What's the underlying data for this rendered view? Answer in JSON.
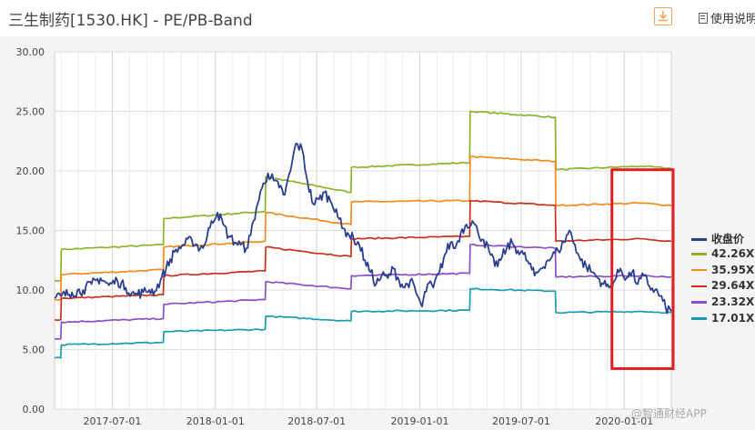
{
  "header": {
    "title": "三生制药[1530.HK] - PE/PB-Band",
    "download_icon": "download-icon",
    "help_label": "使用说明",
    "help_icon": "document-icon"
  },
  "watermark": "@智通财经APP",
  "chart_data": {
    "type": "line",
    "ylim": [
      0,
      30
    ],
    "yticks": [
      "0.00",
      "5.00",
      "10.00",
      "15.00",
      "20.00",
      "25.00",
      "30.00"
    ],
    "xticks": [
      "2017-07-01",
      "2018-01-01",
      "2018-07-01",
      "2019-01-01",
      "2019-07-01",
      "2020-01-01"
    ],
    "xrange": [
      "2017-03-20",
      "2020-03-25"
    ],
    "grid": true,
    "legend_position": "right",
    "highlight_box": {
      "from": "2019-12-10",
      "to": "2020-03-25",
      "y_from": 3.4,
      "y_to": 20.1,
      "color": "#e02020"
    },
    "series": [
      {
        "name": "收盘价",
        "color": "#2b3f8f",
        "points": [
          [
            "2017-03-20",
            9.3
          ],
          [
            "2017-04-01",
            9.5
          ],
          [
            "2017-04-20",
            9.8
          ],
          [
            "2017-05-10",
            10.0
          ],
          [
            "2017-05-25",
            10.5
          ],
          [
            "2017-06-10",
            11.0
          ],
          [
            "2017-06-25",
            10.4
          ],
          [
            "2017-07-10",
            10.8
          ],
          [
            "2017-07-25",
            10.2
          ],
          [
            "2017-08-10",
            9.6
          ],
          [
            "2017-08-25",
            9.8
          ],
          [
            "2017-09-05",
            10.0
          ],
          [
            "2017-09-15",
            9.9
          ],
          [
            "2017-09-25",
            10.8
          ],
          [
            "2017-10-05",
            11.8
          ],
          [
            "2017-10-20",
            13.2
          ],
          [
            "2017-11-05",
            13.8
          ],
          [
            "2017-11-20",
            14.2
          ],
          [
            "2017-12-05",
            13.5
          ],
          [
            "2017-12-15",
            14.0
          ],
          [
            "2017-12-25",
            15.8
          ],
          [
            "2018-01-05",
            16.5
          ],
          [
            "2018-01-15",
            15.5
          ],
          [
            "2018-01-25",
            14.5
          ],
          [
            "2018-02-05",
            14.0
          ],
          [
            "2018-02-15",
            13.8
          ],
          [
            "2018-02-25",
            13.5
          ],
          [
            "2018-03-05",
            14.6
          ],
          [
            "2018-03-15",
            16.8
          ],
          [
            "2018-03-25",
            18.5
          ],
          [
            "2018-04-05",
            19.8
          ],
          [
            "2018-04-15",
            19.2
          ],
          [
            "2018-04-25",
            18.6
          ],
          [
            "2018-05-05",
            18.0
          ],
          [
            "2018-05-15",
            20.0
          ],
          [
            "2018-05-25",
            22.3
          ],
          [
            "2018-06-05",
            21.8
          ],
          [
            "2018-06-15",
            19.0
          ],
          [
            "2018-06-25",
            17.2
          ],
          [
            "2018-07-05",
            17.6
          ],
          [
            "2018-07-15",
            18.2
          ],
          [
            "2018-07-25",
            17.5
          ],
          [
            "2018-08-05",
            16.8
          ],
          [
            "2018-08-15",
            15.2
          ],
          [
            "2018-08-25",
            14.8
          ],
          [
            "2018-09-05",
            14.3
          ],
          [
            "2018-09-15",
            13.8
          ],
          [
            "2018-09-25",
            12.5
          ],
          [
            "2018-10-05",
            11.5
          ],
          [
            "2018-10-15",
            10.5
          ],
          [
            "2018-10-25",
            11.2
          ],
          [
            "2018-11-05",
            11.0
          ],
          [
            "2018-11-15",
            11.8
          ],
          [
            "2018-11-25",
            10.8
          ],
          [
            "2018-12-05",
            10.2
          ],
          [
            "2018-12-15",
            10.8
          ],
          [
            "2018-12-25",
            9.8
          ],
          [
            "2019-01-05",
            8.6
          ],
          [
            "2019-01-15",
            10.5
          ],
          [
            "2019-01-25",
            10.2
          ],
          [
            "2019-02-05",
            11.5
          ],
          [
            "2019-02-15",
            13.0
          ],
          [
            "2019-02-25",
            14.0
          ],
          [
            "2019-03-05",
            13.5
          ],
          [
            "2019-03-15",
            14.8
          ],
          [
            "2019-03-25",
            15.5
          ],
          [
            "2019-04-05",
            15.8
          ],
          [
            "2019-04-15",
            14.8
          ],
          [
            "2019-04-25",
            14.2
          ],
          [
            "2019-05-05",
            13.2
          ],
          [
            "2019-05-15",
            12.0
          ],
          [
            "2019-05-25",
            12.5
          ],
          [
            "2019-06-05",
            13.5
          ],
          [
            "2019-06-15",
            14.0
          ],
          [
            "2019-06-25",
            13.3
          ],
          [
            "2019-07-05",
            13.0
          ],
          [
            "2019-07-15",
            12.2
          ],
          [
            "2019-07-25",
            11.2
          ],
          [
            "2019-08-05",
            11.8
          ],
          [
            "2019-08-15",
            12.4
          ],
          [
            "2019-08-25",
            12.8
          ],
          [
            "2019-09-05",
            13.3
          ],
          [
            "2019-09-15",
            14.0
          ],
          [
            "2019-09-25",
            15.0
          ],
          [
            "2019-10-05",
            13.8
          ],
          [
            "2019-10-15",
            12.5
          ],
          [
            "2019-10-25",
            12.0
          ],
          [
            "2019-11-05",
            11.5
          ],
          [
            "2019-11-15",
            11.0
          ],
          [
            "2019-11-25",
            10.5
          ],
          [
            "2019-12-05",
            10.2
          ],
          [
            "2019-12-15",
            10.8
          ],
          [
            "2019-12-25",
            11.8
          ],
          [
            "2020-01-05",
            11.0
          ],
          [
            "2020-01-15",
            11.5
          ],
          [
            "2020-01-25",
            10.5
          ],
          [
            "2020-02-05",
            11.2
          ],
          [
            "2020-02-15",
            10.3
          ],
          [
            "2020-02-25",
            10.0
          ],
          [
            "2020-03-05",
            9.5
          ],
          [
            "2020-03-15",
            8.5
          ],
          [
            "2020-03-25",
            8.2
          ]
        ]
      },
      {
        "name": "42.26X",
        "color": "#8db22a",
        "points": [
          [
            "2017-03-20",
            10.8
          ],
          [
            "2017-03-31",
            10.8
          ],
          [
            "2017-04-01",
            13.4
          ],
          [
            "2017-09-30",
            13.8
          ],
          [
            "2017-10-01",
            16.0
          ],
          [
            "2018-03-31",
            16.6
          ],
          [
            "2018-04-01",
            19.5
          ],
          [
            "2018-08-31",
            18.2
          ],
          [
            "2018-09-01",
            20.3
          ],
          [
            "2019-03-31",
            20.7
          ],
          [
            "2019-04-01",
            25.0
          ],
          [
            "2019-08-31",
            24.5
          ],
          [
            "2019-09-01",
            20.1
          ],
          [
            "2020-01-31",
            20.4
          ],
          [
            "2020-03-25",
            20.2
          ]
        ]
      },
      {
        "name": "35.95X",
        "color": "#f28b1c",
        "points": [
          [
            "2017-03-20",
            9.2
          ],
          [
            "2017-03-31",
            9.2
          ],
          [
            "2017-04-01",
            11.3
          ],
          [
            "2017-09-30",
            11.7
          ],
          [
            "2017-10-01",
            13.6
          ],
          [
            "2018-03-31",
            14.1
          ],
          [
            "2018-04-01",
            16.5
          ],
          [
            "2018-08-31",
            15.5
          ],
          [
            "2018-09-01",
            17.4
          ],
          [
            "2019-03-31",
            17.5
          ],
          [
            "2019-04-01",
            21.2
          ],
          [
            "2019-08-31",
            20.8
          ],
          [
            "2019-09-01",
            17.1
          ],
          [
            "2020-01-31",
            17.3
          ],
          [
            "2020-03-25",
            17.1
          ]
        ]
      },
      {
        "name": "29.64X",
        "color": "#c8321c",
        "points": [
          [
            "2017-03-20",
            7.5
          ],
          [
            "2017-03-31",
            7.5
          ],
          [
            "2017-04-01",
            9.3
          ],
          [
            "2017-09-30",
            9.6
          ],
          [
            "2017-10-01",
            11.2
          ],
          [
            "2018-03-31",
            11.6
          ],
          [
            "2018-04-01",
            13.6
          ],
          [
            "2018-08-31",
            12.8
          ],
          [
            "2018-09-01",
            14.3
          ],
          [
            "2019-03-31",
            14.5
          ],
          [
            "2019-04-01",
            17.5
          ],
          [
            "2019-08-31",
            17.1
          ],
          [
            "2019-09-01",
            14.1
          ],
          [
            "2020-01-31",
            14.3
          ],
          [
            "2020-03-25",
            14.1
          ]
        ]
      },
      {
        "name": "23.32X",
        "color": "#8a4fc8",
        "points": [
          [
            "2017-03-20",
            5.9
          ],
          [
            "2017-03-31",
            5.9
          ],
          [
            "2017-04-01",
            7.3
          ],
          [
            "2017-09-30",
            7.6
          ],
          [
            "2017-10-01",
            8.8
          ],
          [
            "2018-03-31",
            9.2
          ],
          [
            "2018-04-01",
            10.7
          ],
          [
            "2018-08-31",
            10.1
          ],
          [
            "2018-09-01",
            11.2
          ],
          [
            "2019-03-31",
            11.4
          ],
          [
            "2019-04-01",
            13.8
          ],
          [
            "2019-08-31",
            13.5
          ],
          [
            "2019-09-01",
            11.1
          ],
          [
            "2020-01-31",
            11.2
          ],
          [
            "2020-03-25",
            11.1
          ]
        ]
      },
      {
        "name": "17.01X",
        "color": "#1d9cb0",
        "points": [
          [
            "2017-03-20",
            4.3
          ],
          [
            "2017-03-31",
            4.3
          ],
          [
            "2017-04-01",
            5.4
          ],
          [
            "2017-09-30",
            5.6
          ],
          [
            "2017-10-01",
            6.5
          ],
          [
            "2018-03-31",
            6.7
          ],
          [
            "2018-04-01",
            7.8
          ],
          [
            "2018-08-31",
            7.4
          ],
          [
            "2018-09-01",
            8.2
          ],
          [
            "2019-03-31",
            8.3
          ],
          [
            "2019-04-01",
            10.1
          ],
          [
            "2019-08-31",
            9.9
          ],
          [
            "2019-09-01",
            8.1
          ],
          [
            "2020-01-31",
            8.2
          ],
          [
            "2020-03-25",
            8.1
          ]
        ]
      }
    ]
  }
}
